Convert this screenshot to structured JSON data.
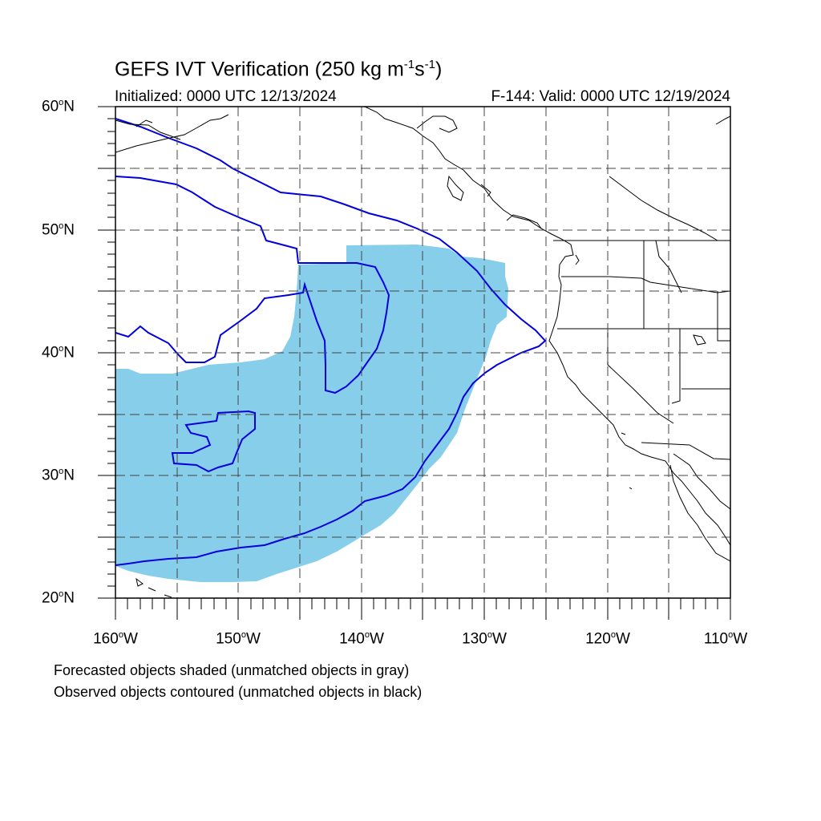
{
  "title": {
    "main": "GEFS IVT Verification (250 kg m",
    "exp1": "-1",
    "mid": "s",
    "exp2": "-1",
    "close": ")"
  },
  "initialized": "Initialized: 0000 UTC 12/13/2024",
  "valid": "F-144: Valid: 0000 UTC 12/19/2024",
  "lat_labels": [
    {
      "value": "60",
      "deg": "o",
      "hemi": "N"
    },
    {
      "value": "50",
      "deg": "o",
      "hemi": "N"
    },
    {
      "value": "40",
      "deg": "o",
      "hemi": "N"
    },
    {
      "value": "30",
      "deg": "o",
      "hemi": "N"
    },
    {
      "value": "20",
      "deg": "o",
      "hemi": "N"
    }
  ],
  "lon_labels": [
    {
      "value": "160",
      "deg": "o",
      "hemi": "W"
    },
    {
      "value": "150",
      "deg": "o",
      "hemi": "W"
    },
    {
      "value": "140",
      "deg": "o",
      "hemi": "W"
    },
    {
      "value": "130",
      "deg": "o",
      "hemi": "W"
    },
    {
      "value": "120",
      "deg": "o",
      "hemi": "W"
    },
    {
      "value": "110",
      "deg": "o",
      "hemi": "W"
    }
  ],
  "notes": {
    "forecast": "Forecasted objects shaded (unmatched objects in gray)",
    "observed": "Observed objects contoured (unmatched objects in black)"
  },
  "colors": {
    "forecast_fill": "#87ceeb",
    "observed_contour": "#0000dd",
    "coastline": "#000000",
    "grid": "#444444"
  }
}
